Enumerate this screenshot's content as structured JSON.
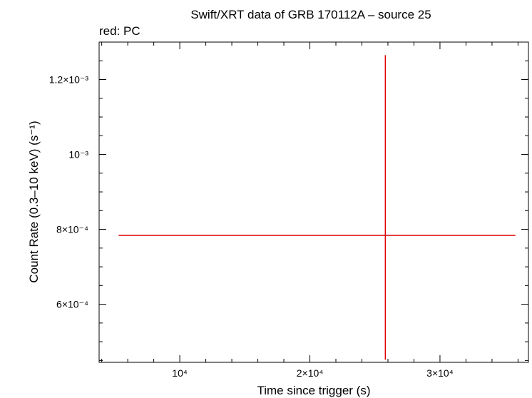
{
  "chart_data": {
    "type": "scatter",
    "title": "Swift/XRT data of GRB 170112A – source 25",
    "subtitle": "red: PC",
    "xlabel": "Time since trigger (s)",
    "ylabel": "Count Rate (0.3–10 keV) (s⁻¹)",
    "xlim": [
      3800,
      36800
    ],
    "ylim": [
      0.000445,
      0.0013
    ],
    "x_ticks": [
      {
        "value": 10000,
        "label": "10⁴"
      },
      {
        "value": 20000,
        "label": "2×10⁴"
      },
      {
        "value": 30000,
        "label": "3×10⁴"
      }
    ],
    "y_ticks": [
      {
        "value": 0.0006,
        "label": "6×10⁻⁴"
      },
      {
        "value": 0.0008,
        "label": "8×10⁻⁴"
      },
      {
        "value": 0.001,
        "label": "10⁻³"
      },
      {
        "value": 0.0012,
        "label": "1.2×10⁻³"
      }
    ],
    "series": [
      {
        "color": "#e00000",
        "points": [
          {
            "x": 25800,
            "x_lo": 5300,
            "x_hi": 35800,
            "y": 0.000784,
            "y_lo": 0.000452,
            "y_hi": 0.001265
          }
        ]
      }
    ]
  }
}
